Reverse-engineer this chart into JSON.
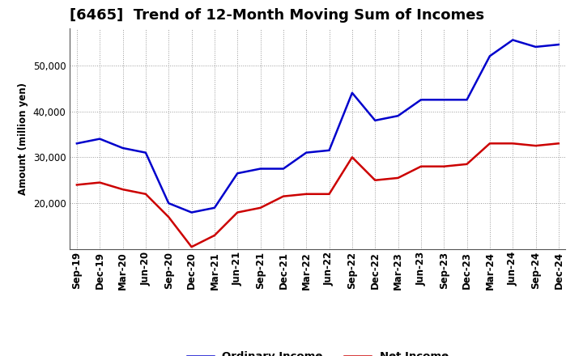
{
  "title": "[6465]  Trend of 12-Month Moving Sum of Incomes",
  "ylabel": "Amount (million yen)",
  "x_labels": [
    "Sep-19",
    "Dec-19",
    "Mar-20",
    "Jun-20",
    "Sep-20",
    "Dec-20",
    "Mar-21",
    "Jun-21",
    "Sep-21",
    "Dec-21",
    "Mar-22",
    "Jun-22",
    "Sep-22",
    "Dec-22",
    "Mar-23",
    "Jun-23",
    "Sep-23",
    "Dec-23",
    "Mar-24",
    "Jun-24",
    "Sep-24",
    "Dec-24"
  ],
  "ordinary_income": [
    33000,
    34000,
    32000,
    31000,
    20000,
    18000,
    19000,
    26500,
    27500,
    27500,
    31000,
    31500,
    44000,
    38000,
    39000,
    42500,
    42500,
    42500,
    52000,
    55500,
    54000,
    54500
  ],
  "net_income": [
    24000,
    24500,
    23000,
    22000,
    17000,
    10500,
    13000,
    18000,
    19000,
    21500,
    22000,
    22000,
    30000,
    25000,
    25500,
    28000,
    28000,
    28500,
    33000,
    33000,
    32500,
    33000
  ],
  "ordinary_color": "#0000cc",
  "net_color": "#cc0000",
  "ylim_min": 10000,
  "ylim_max": 58000,
  "yticks": [
    20000,
    30000,
    40000,
    50000
  ],
  "background_color": "#ffffff",
  "grid_color": "#999999",
  "title_fontsize": 13,
  "axis_fontsize": 8.5,
  "legend_fontsize": 9.5
}
